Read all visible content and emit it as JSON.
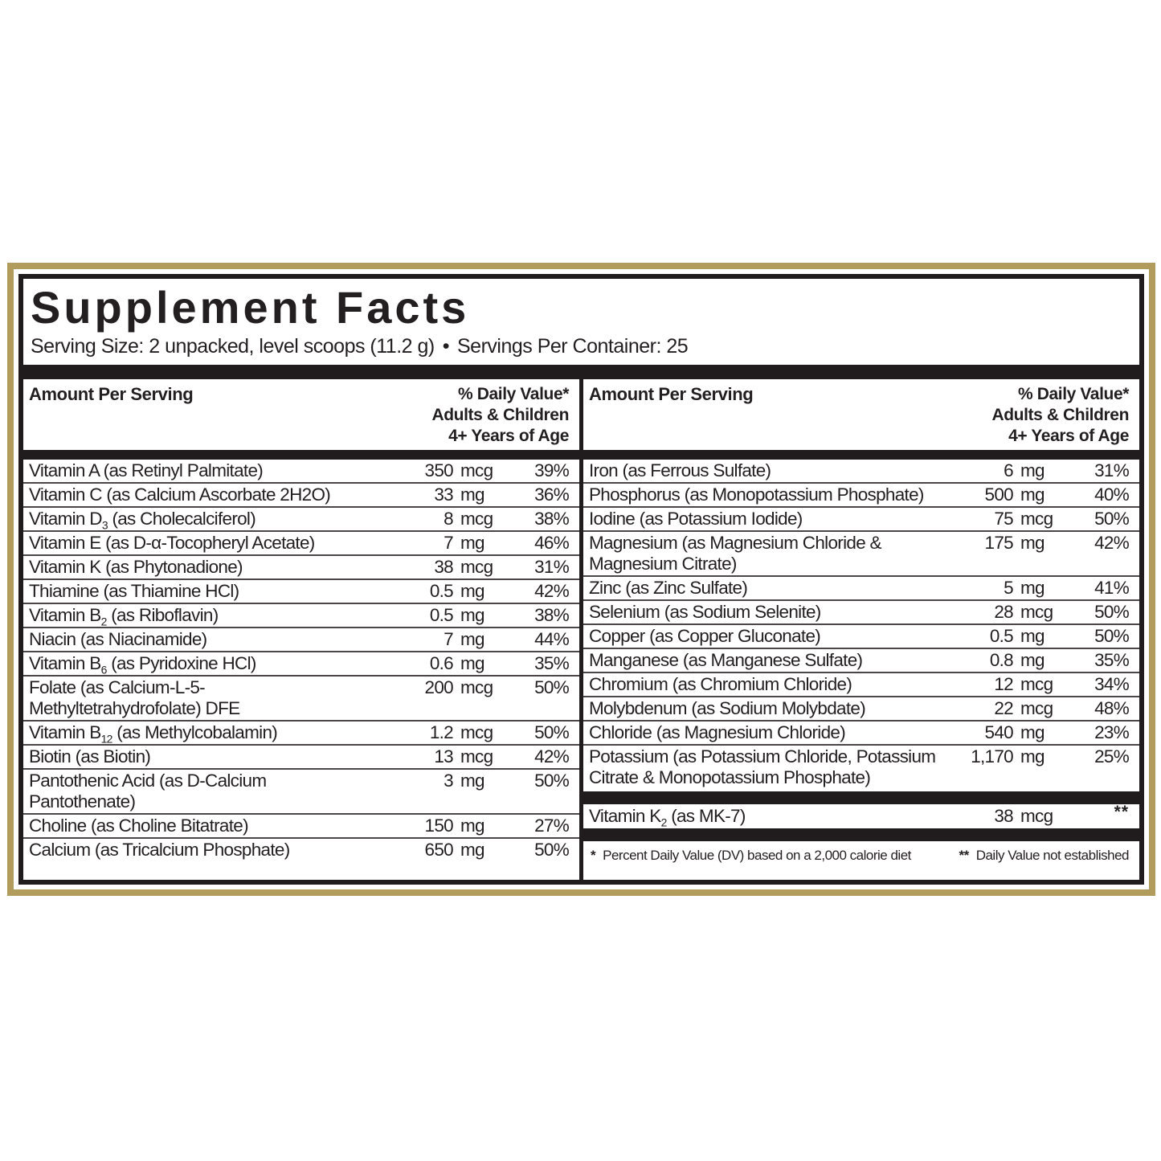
{
  "label": {
    "border_color": "#b19b5d",
    "bar_color": "#201b1c",
    "text_color": "#231f20",
    "title": "Supplement Facts",
    "serving_size": "Serving Size: 2 unpacked, level scoops (11.2 g)",
    "bullet": "•",
    "servings_per_container": "Servings Per Container: 25",
    "column_header": {
      "amount": "Amount Per Serving",
      "dv_lines": [
        "% Daily Value*",
        "Adults & Children",
        "4+ Years of Age"
      ]
    },
    "left_column": {
      "rows": [
        {
          "name": "Vitamin A (as Retinyl Palmitate)",
          "amount": "350",
          "unit": "mcg",
          "dv": "39%"
        },
        {
          "name": "Vitamin C (as Calcium Ascorbate 2H2O)",
          "amount": "33",
          "unit": "mg",
          "dv": "36%"
        },
        {
          "name": "Vitamin D_{3} (as Cholecalciferol)",
          "amount": "8",
          "unit": "mcg",
          "dv": "38%"
        },
        {
          "name": "Vitamin E (as D-α-Tocopheryl Acetate)",
          "amount": "7",
          "unit": "mg",
          "dv": "46%"
        },
        {
          "name": "Vitamin K (as Phytonadione)",
          "amount": "38",
          "unit": "mcg",
          "dv": "31%"
        },
        {
          "name": "Thiamine (as Thiamine HCl)",
          "amount": "0.5",
          "unit": "mg",
          "dv": "42%"
        },
        {
          "name": "Vitamin B_{2} (as Riboflavin)",
          "amount": "0.5",
          "unit": "mg",
          "dv": "38%"
        },
        {
          "name": "Niacin (as Niacinamide)",
          "amount": "7",
          "unit": "mg",
          "dv": "44%"
        },
        {
          "name": "Vitamin B_{6} (as Pyridoxine HCl)",
          "amount": "0.6",
          "unit": "mg",
          "dv": "35%"
        },
        {
          "name": "Folate (as Calcium-L-5-\nMethyltetrahydrofolate) DFE",
          "amount": "200",
          "unit": "mcg",
          "dv": "50%"
        },
        {
          "name": "Vitamin B_{12} (as Methylcobalamin)",
          "amount": "1.2",
          "unit": "mcg",
          "dv": "50%"
        },
        {
          "name": "Biotin (as Biotin)",
          "amount": "13",
          "unit": "mcg",
          "dv": "42%"
        },
        {
          "name": "Pantothenic Acid (as D-Calcium\nPantothenate)",
          "amount": "3",
          "unit": "mg",
          "dv": "50%"
        },
        {
          "name": "Choline (as Choline Bitatrate)",
          "amount": "150",
          "unit": "mg",
          "dv": "27%"
        },
        {
          "name": "Calcium (as Tricalcium Phosphate)",
          "amount": "650",
          "unit": "mg",
          "dv": "50%"
        }
      ]
    },
    "right_column": {
      "rows": [
        {
          "name": "Iron (as Ferrous Sulfate)",
          "amount": "6",
          "unit": "mg",
          "dv": "31%"
        },
        {
          "name": "Phosphorus (as Monopotassium Phosphate)",
          "amount": "500",
          "unit": "mg",
          "dv": "40%"
        },
        {
          "name": "Iodine (as Potassium Iodide)",
          "amount": "75",
          "unit": "mcg",
          "dv": "50%"
        },
        {
          "name": "Magnesium (as Magnesium Chloride &\nMagnesium Citrate)",
          "amount": "175",
          "unit": "mg",
          "dv": "42%"
        },
        {
          "name": "Zinc (as Zinc Sulfate)",
          "amount": "5",
          "unit": "mg",
          "dv": "41%"
        },
        {
          "name": "Selenium (as Sodium Selenite)",
          "amount": "28",
          "unit": "mcg",
          "dv": "50%"
        },
        {
          "name": "Copper (as Copper Gluconate)",
          "amount": "0.5",
          "unit": "mg",
          "dv": "50%"
        },
        {
          "name": "Manganese (as Manganese Sulfate)",
          "amount": "0.8",
          "unit": "mg",
          "dv": "35%"
        },
        {
          "name": "Chromium (as Chromium Chloride)",
          "amount": "12",
          "unit": "mcg",
          "dv": "34%"
        },
        {
          "name": "Molybdenum (as Sodium Molybdate)",
          "amount": "22",
          "unit": "mcg",
          "dv": "48%"
        },
        {
          "name": "Chloride (as Magnesium Chloride)",
          "amount": "540",
          "unit": "mg",
          "dv": "23%"
        },
        {
          "name": "Potassium (as Potassium Chloride, Potassium\nCitrate & Monopotassium Phosphate)",
          "amount": "1,170",
          "unit": "mg",
          "dv": "25%"
        }
      ],
      "k2_rows": [
        {
          "name": "Vitamin K_{2} (as MK-7)",
          "amount": "38",
          "unit": "mcg",
          "dv": "**"
        }
      ],
      "footnote": {
        "star1": "*",
        "text1": "Percent Daily Value (DV) based on a 2,000 calorie diet",
        "star2": "**",
        "text2": "Daily Value not established"
      }
    }
  }
}
